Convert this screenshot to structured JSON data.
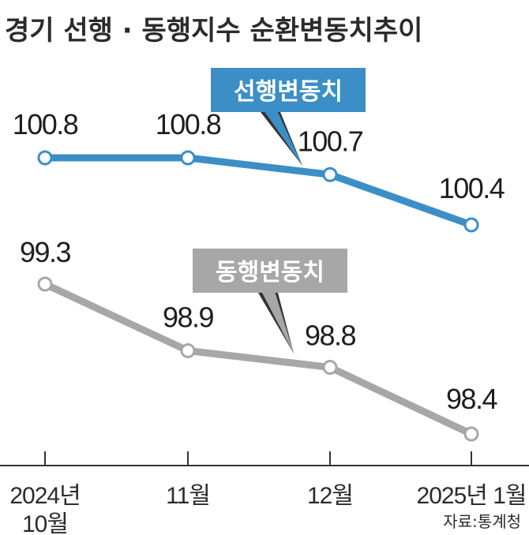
{
  "chart_data": {
    "type": "line",
    "title": "경기 선행 · 동행지수 순환변동치추이",
    "categories": [
      [
        "2024년",
        "10월"
      ],
      [
        "11월"
      ],
      [
        "12월"
      ],
      [
        "2025년 1월"
      ]
    ],
    "series": [
      {
        "name": "선행변동치",
        "values": [
          100.8,
          100.8,
          100.7,
          100.4
        ],
        "color": "#3b8fc6",
        "labels": [
          "100.8",
          "100.8",
          "100.7",
          "100.4"
        ]
      },
      {
        "name": "동행변동치",
        "values": [
          99.3,
          98.9,
          98.8,
          98.4
        ],
        "color": "#a7a7a7",
        "labels": [
          "99.3",
          "98.9",
          "98.8",
          "98.4"
        ]
      }
    ],
    "grid": false,
    "legend": "inline-callouts",
    "source": "자료:통계청"
  }
}
